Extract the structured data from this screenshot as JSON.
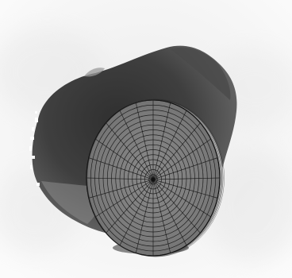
{
  "scene": {
    "background_color": "#f3f3f3",
    "blob_color": "#3a3a3a",
    "disc_fill": "#7a7a7a",
    "mesh_line_color": "#111111",
    "radial_line_count": 24,
    "ring_count": 16
  }
}
